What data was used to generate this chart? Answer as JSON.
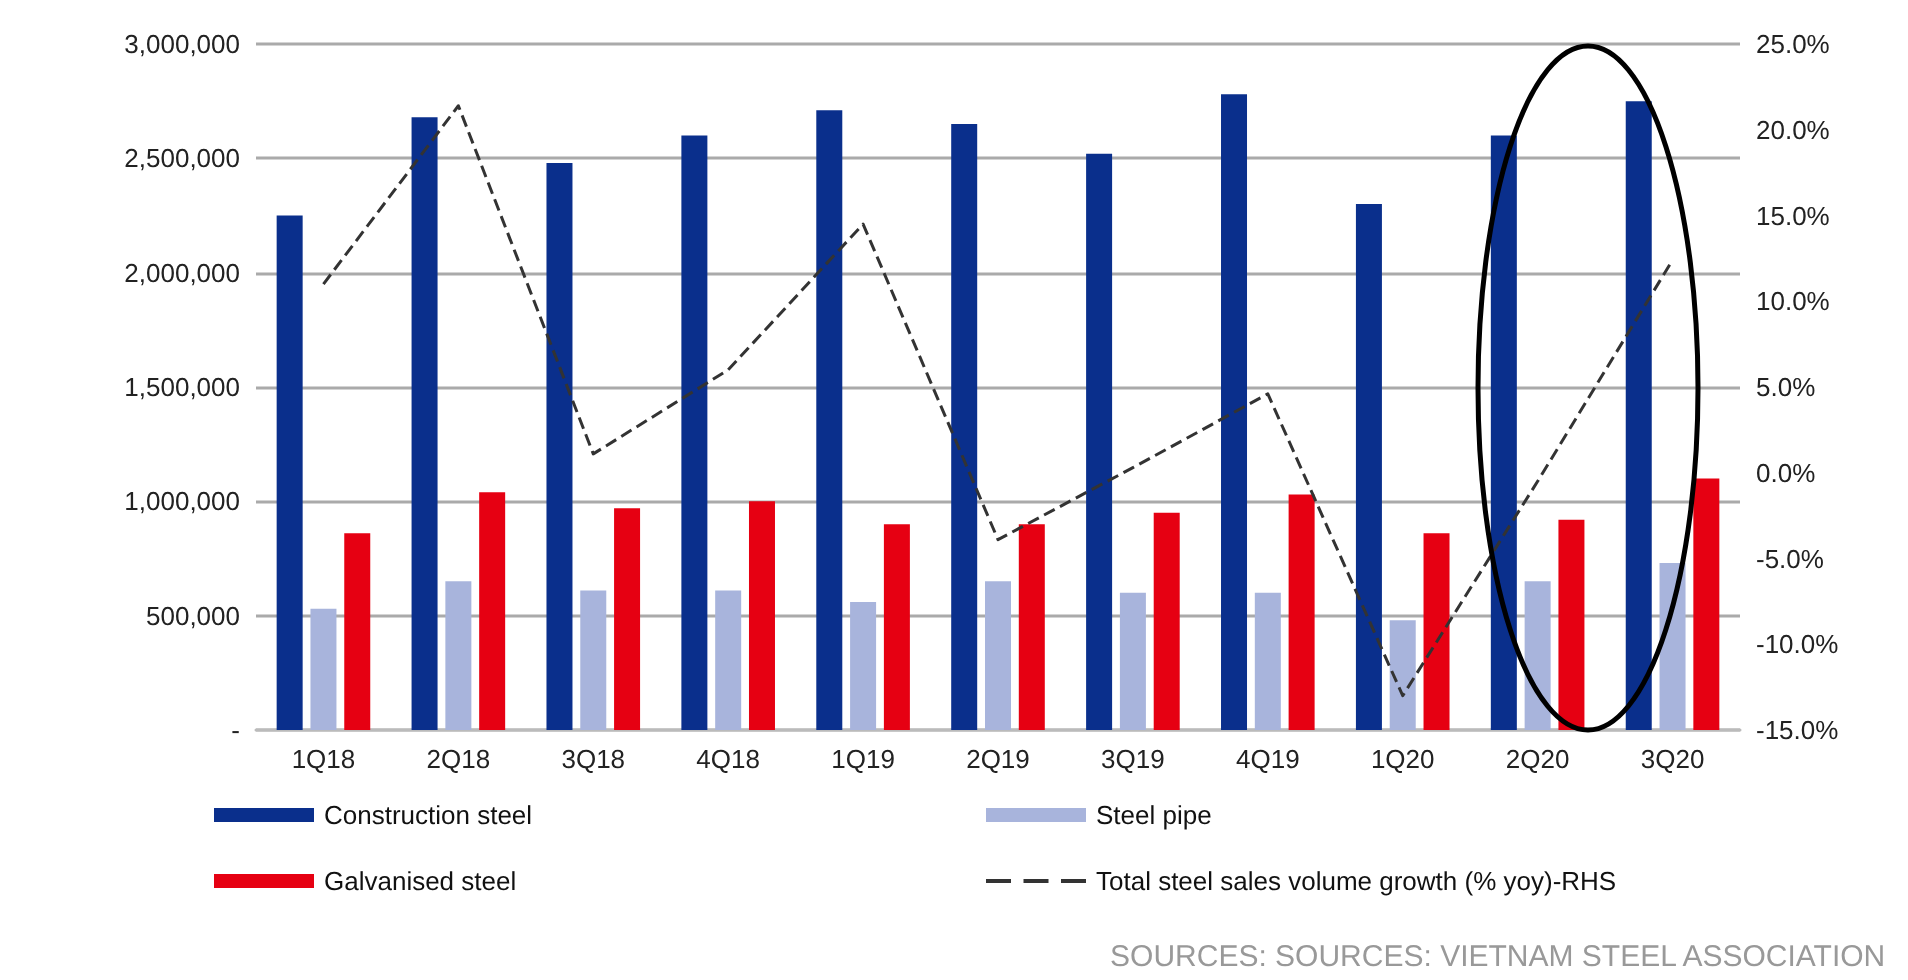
{
  "chart_data": {
    "type": "bar",
    "categories": [
      "1Q18",
      "2Q18",
      "3Q18",
      "4Q18",
      "1Q19",
      "2Q19",
      "3Q19",
      "4Q19",
      "1Q20",
      "2Q20",
      "3Q20"
    ],
    "series": [
      {
        "name": "Construction steel",
        "color": "#0a2f8c",
        "values": [
          2250000,
          2680000,
          2480000,
          2600000,
          2710000,
          2650000,
          2520000,
          2780000,
          2300000,
          2600000,
          2750000
        ]
      },
      {
        "name": "Steel pipe",
        "color": "#a8b4dc",
        "values": [
          530000,
          650000,
          610000,
          610000,
          560000,
          650000,
          600000,
          600000,
          480000,
          650000,
          730000
        ]
      },
      {
        "name": "Galvanised steel",
        "color": "#e60012",
        "values": [
          860000,
          1040000,
          970000,
          1000000,
          900000,
          900000,
          950000,
          1030000,
          860000,
          920000,
          1100000
        ]
      },
      {
        "name": "Total steel sales volume growth (% yoy)-RHS",
        "type": "line",
        "axis": "y2",
        "color": "#333333",
        "line_style": "dashed",
        "marker": "none",
        "values": [
          11.0,
          21.4,
          1.1,
          6.0,
          14.5,
          -3.9,
          0.3,
          4.6,
          -13.0,
          -0.5,
          12.4
        ]
      }
    ],
    "ylim": [
      0,
      3000000
    ],
    "yticks": [
      {
        "value": 0,
        "label": "-"
      },
      {
        "value": 500000,
        "label": "500,000"
      },
      {
        "value": 1000000,
        "label": "1,000,000"
      },
      {
        "value": 1500000,
        "label": "1,500,000"
      },
      {
        "value": 2000000,
        "label": "2,000,000"
      },
      {
        "value": 2500000,
        "label": "2,500,000"
      },
      {
        "value": 3000000,
        "label": "3,000,000"
      }
    ],
    "y2lim": [
      -15,
      25
    ],
    "y2ticks": [
      {
        "value": -15,
        "label": "-15.0%"
      },
      {
        "value": -10,
        "label": "-10.0%"
      },
      {
        "value": -5,
        "label": "-5.0%"
      },
      {
        "value": 0,
        "label": "0.0%"
      },
      {
        "value": 5,
        "label": "5.0%"
      },
      {
        "value": 10,
        "label": "10.0%"
      },
      {
        "value": 15,
        "label": "15.0%"
      },
      {
        "value": 20,
        "label": "20.0%"
      },
      {
        "value": 25,
        "label": "25.0%"
      }
    ],
    "grid": "y",
    "legend": "bottom",
    "annotations": [
      "SOURCES: SOURCES: VIETNAM STEEL ASSOCIATION"
    ]
  }
}
